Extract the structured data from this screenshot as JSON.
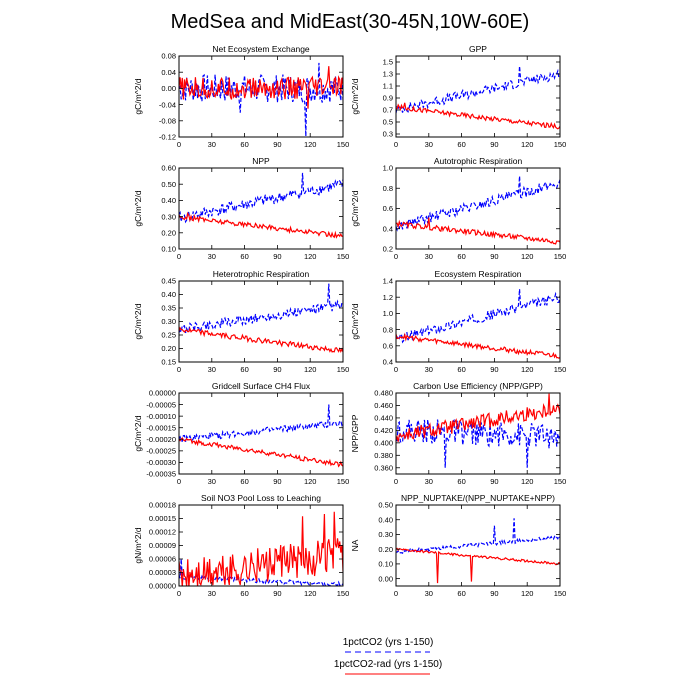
{
  "title": "MedSea and MidEast(30-45N,10W-60E)",
  "legend": [
    {
      "label": "1pctCO2 (yrs 1-150)",
      "color": "#0000ff",
      "dash": true
    },
    {
      "label": "1pctCO2-rad (yrs 1-150)",
      "color": "#ff0000",
      "dash": false
    }
  ],
  "chart_data": [
    {
      "type": "line",
      "title": "Net Ecosystem Exchange",
      "ylabel": "gC/m^2/d",
      "xlim": [
        0,
        150
      ],
      "xticks": [
        0,
        30,
        60,
        90,
        120,
        150
      ],
      "ylim": [
        -0.12,
        0.08
      ],
      "yticks": [
        "-0.12",
        "-0.08",
        "-0.04",
        "0.00",
        "0.04",
        "0.08"
      ],
      "yvals": [
        -0.12,
        -0.08,
        -0.04,
        0,
        0.04,
        0.08
      ],
      "series": [
        {
          "start": 0.0,
          "end": 0.0,
          "amp": 0.035,
          "spikes": [
            [
              116,
              -0.118
            ],
            [
              128,
              0.063
            ],
            [
              56,
              -0.06
            ]
          ]
        },
        {
          "start": 0.0,
          "end": 0.0,
          "amp": 0.028,
          "spikes": [
            [
              137,
              0.055
            ],
            [
              118,
              -0.05
            ]
          ]
        }
      ]
    },
    {
      "type": "line",
      "title": "GPP",
      "ylabel": "gC/m^2/d",
      "xlim": [
        0,
        150
      ],
      "xticks": [
        0,
        30,
        60,
        90,
        120,
        150
      ],
      "ylim": [
        0.25,
        1.6
      ],
      "yticks": [
        "0.3",
        "0.5",
        "0.7",
        "0.9",
        "1.1",
        "1.3",
        "1.5"
      ],
      "yvals": [
        0.3,
        0.5,
        0.7,
        0.9,
        1.1,
        1.3,
        1.5
      ],
      "series": [
        {
          "start": 0.7,
          "end": 1.3,
          "amp": 0.08,
          "spikes": [
            [
              113,
              1.43
            ]
          ]
        },
        {
          "start": 0.75,
          "end": 0.42,
          "amp": 0.04,
          "spikes": [
            [
              8,
              0.82
            ]
          ]
        }
      ]
    },
    {
      "type": "line",
      "title": "NPP",
      "ylabel": "gC/m^2/d",
      "xlim": [
        0,
        150
      ],
      "xticks": [
        0,
        30,
        60,
        90,
        120,
        150
      ],
      "ylim": [
        0.1,
        0.6
      ],
      "yticks": [
        "0.10",
        "0.20",
        "0.30",
        "0.40",
        "0.50",
        "0.60"
      ],
      "yvals": [
        0.1,
        0.2,
        0.3,
        0.4,
        0.5,
        0.6
      ],
      "series": [
        {
          "start": 0.29,
          "end": 0.5,
          "amp": 0.035,
          "spikes": [
            [
              113,
              0.57
            ]
          ]
        },
        {
          "start": 0.3,
          "end": 0.18,
          "amp": 0.015,
          "spikes": [
            [
              8,
              0.32
            ]
          ]
        }
      ]
    },
    {
      "type": "line",
      "title": "Autotrophic Respiration",
      "ylabel": "gC/m^2/d",
      "xlim": [
        0,
        150
      ],
      "xticks": [
        0,
        30,
        60,
        90,
        120,
        150
      ],
      "ylim": [
        0.2,
        1.0
      ],
      "yticks": [
        "0.2",
        "0.4",
        "0.6",
        "0.8",
        "1.0"
      ],
      "yvals": [
        0.2,
        0.4,
        0.6,
        0.8,
        1.0
      ],
      "series": [
        {
          "start": 0.42,
          "end": 0.85,
          "amp": 0.05,
          "spikes": [
            [
              113,
              0.92
            ]
          ]
        },
        {
          "start": 0.45,
          "end": 0.27,
          "amp": 0.025,
          "spikes": [
            [
              30,
              0.51
            ]
          ]
        }
      ]
    },
    {
      "type": "line",
      "title": "Heterotrophic Respiration",
      "ylabel": "gC/m^2/d",
      "xlim": [
        0,
        150
      ],
      "xticks": [
        0,
        30,
        60,
        90,
        120,
        150
      ],
      "ylim": [
        0.15,
        0.45
      ],
      "yticks": [
        "0.15",
        "0.20",
        "0.25",
        "0.30",
        "0.35",
        "0.40",
        "0.45"
      ],
      "yvals": [
        0.15,
        0.2,
        0.25,
        0.3,
        0.35,
        0.4,
        0.45
      ],
      "series": [
        {
          "start": 0.27,
          "end": 0.36,
          "amp": 0.018,
          "spikes": [
            [
              137,
              0.44
            ]
          ]
        },
        {
          "start": 0.27,
          "end": 0.19,
          "amp": 0.01,
          "spikes": []
        }
      ]
    },
    {
      "type": "line",
      "title": "Ecosystem Respiration",
      "ylabel": "gC/m^2/d",
      "xlim": [
        0,
        150
      ],
      "xticks": [
        0,
        30,
        60,
        90,
        120,
        150
      ],
      "ylim": [
        0.4,
        1.4
      ],
      "yticks": [
        "0.4",
        "0.6",
        "0.8",
        "1.0",
        "1.2",
        "1.4"
      ],
      "yvals": [
        0.4,
        0.6,
        0.8,
        1.0,
        1.2,
        1.4
      ],
      "series": [
        {
          "start": 0.68,
          "end": 1.2,
          "amp": 0.06,
          "spikes": [
            [
              113,
              1.3
            ]
          ]
        },
        {
          "start": 0.72,
          "end": 0.47,
          "amp": 0.03,
          "spikes": []
        }
      ]
    },
    {
      "type": "line",
      "title": "Gridcell Surface CH4 Flux",
      "ylabel": "gC/m^2/d",
      "xlim": [
        0,
        150
      ],
      "xticks": [
        0,
        30,
        60,
        90,
        120,
        150
      ],
      "ylim": [
        -0.00035,
        0.0
      ],
      "yticks": [
        "-0.00035",
        "-0.00030",
        "-0.00025",
        "-0.00020",
        "-0.00015",
        "-0.00010",
        "-0.00005",
        "0.00000"
      ],
      "yvals": [
        -0.00035,
        -0.0003,
        -0.00025,
        -0.0002,
        -0.00015,
        -0.0001,
        -5e-05,
        0
      ],
      "series": [
        {
          "start": -0.0002,
          "end": -0.00013,
          "amp": 1.5e-05,
          "spikes": [
            [
              137,
              -5e-05
            ]
          ]
        },
        {
          "start": -0.0002,
          "end": -0.00031,
          "amp": 1e-05,
          "spikes": []
        }
      ]
    },
    {
      "type": "line",
      "title": "Carbon Use Efficiency (NPP/GPP)",
      "ylabel": "NPP/GPP",
      "xlim": [
        0,
        150
      ],
      "xticks": [
        0,
        30,
        60,
        90,
        120,
        150
      ],
      "ylim": [
        0.35,
        0.48
      ],
      "yticks": [
        "0.360",
        "0.380",
        "0.400",
        "0.420",
        "0.440",
        "0.460",
        "0.480"
      ],
      "yvals": [
        0.36,
        0.38,
        0.4,
        0.42,
        0.44,
        0.46,
        0.48
      ],
      "series": [
        {
          "start": 0.42,
          "end": 0.41,
          "amp": 0.02,
          "spikes": [
            [
              45,
              0.36
            ],
            [
              120,
              0.36
            ]
          ]
        },
        {
          "start": 0.41,
          "end": 0.455,
          "amp": 0.012,
          "spikes": [
            [
              140,
              0.479
            ]
          ]
        }
      ]
    },
    {
      "type": "line",
      "title": "Soil NO3 Pool Loss to Leaching",
      "ylabel": "gN/m^2/d",
      "xlim": [
        0,
        150
      ],
      "xticks": [
        0,
        30,
        60,
        90,
        120,
        150
      ],
      "ylim": [
        0.0,
        0.00018
      ],
      "yticks": [
        "0.00000",
        "0.00003",
        "0.00006",
        "0.00009",
        "0.00012",
        "0.00015",
        "0.00018"
      ],
      "yvals": [
        0,
        3e-05,
        6e-05,
        9e-05,
        0.00012,
        0.00015,
        0.00018
      ],
      "series": [
        {
          "start": 2e-05,
          "end": 3e-06,
          "amp": 5e-06,
          "spikes": [
            [
              2,
              6e-05
            ]
          ]
        },
        {
          "start": 2e-05,
          "end": 7e-05,
          "amp": 4e-05,
          "spikes": [
            [
              113,
              0.000155
            ],
            [
              133,
              0.00016
            ],
            [
              142,
              0.000165
            ],
            [
              61,
              6e-05
            ],
            [
              75,
              5e-05
            ]
          ]
        }
      ]
    },
    {
      "type": "line",
      "title": "NPP_NUPTAKE/(NPP_NUPTAKE+NPP)",
      "ylabel": "NA",
      "xlim": [
        0,
        150
      ],
      "xticks": [
        0,
        30,
        60,
        90,
        120,
        150
      ],
      "ylim": [
        -0.05,
        0.5
      ],
      "yticks": [
        "0.00",
        "0.10",
        "0.20",
        "0.30",
        "0.40",
        "0.50"
      ],
      "yvals": [
        0,
        0.1,
        0.2,
        0.3,
        0.4,
        0.5
      ],
      "series": [
        {
          "start": 0.18,
          "end": 0.28,
          "amp": 0.012,
          "spikes": [
            [
              108,
              0.41
            ],
            [
              90,
              0.36
            ]
          ]
        },
        {
          "start": 0.2,
          "end": 0.1,
          "amp": 0.008,
          "spikes": [
            [
              38,
              -0.03
            ],
            [
              69,
              -0.02
            ]
          ]
        }
      ]
    }
  ]
}
